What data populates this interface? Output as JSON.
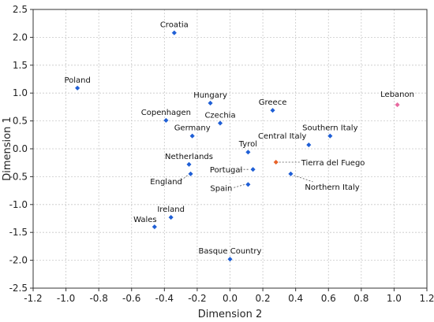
{
  "chart_data": {
    "type": "scatter",
    "xlabel": "Dimension 2",
    "ylabel": "Dimension 1",
    "xlim": [
      -1.2,
      1.2
    ],
    "ylim": [
      -2.5,
      2.5
    ],
    "xticks": [
      "-1.2",
      "-1.0",
      "-0.8",
      "-0.6",
      "-0.4",
      "-0.2",
      "0.0",
      "0.2",
      "0.4",
      "0.6",
      "0.8",
      "1.0",
      "1.2"
    ],
    "yticks": [
      "2.5",
      "2.0",
      "1.5",
      "1.0",
      "0.5",
      "0.0",
      "-0.5",
      "-1.0",
      "-1.5",
      "-2.0",
      "-2.5"
    ],
    "grid": true,
    "colors": {
      "default": "#1f5fd6",
      "tierra": "#e8632a",
      "lebanon": "#e86aa0"
    },
    "points": [
      {
        "label": "Croatia",
        "x": -0.34,
        "y": 2.08,
        "color": "default"
      },
      {
        "label": "Poland",
        "x": -0.93,
        "y": 1.09,
        "color": "default"
      },
      {
        "label": "Hungary",
        "x": -0.12,
        "y": 0.82,
        "color": "default"
      },
      {
        "label": "Copenhagen",
        "x": -0.39,
        "y": 0.51,
        "color": "default"
      },
      {
        "label": "Czechia",
        "x": -0.06,
        "y": 0.46,
        "color": "default"
      },
      {
        "label": "Greece",
        "x": 0.26,
        "y": 0.69,
        "color": "default"
      },
      {
        "label": "Lebanon",
        "x": 1.02,
        "y": 0.79,
        "color": "lebanon"
      },
      {
        "label": "Germany",
        "x": -0.23,
        "y": 0.23,
        "color": "default"
      },
      {
        "label": "Southern Italy",
        "x": 0.61,
        "y": 0.23,
        "color": "default"
      },
      {
        "label": "Central Italy",
        "x": 0.48,
        "y": 0.07,
        "color": "default"
      },
      {
        "label": "Tyrol",
        "x": 0.11,
        "y": -0.06,
        "color": "default"
      },
      {
        "label": "Netherlands",
        "x": -0.25,
        "y": -0.28,
        "color": "default"
      },
      {
        "label": "Portugal",
        "x": 0.14,
        "y": -0.37,
        "color": "default"
      },
      {
        "label": "Tierra del Fuego",
        "x": 0.28,
        "y": -0.24,
        "color": "tierra"
      },
      {
        "label": "England",
        "x": -0.24,
        "y": -0.45,
        "color": "default"
      },
      {
        "label": "Northern Italy",
        "x": 0.37,
        "y": -0.45,
        "color": "default"
      },
      {
        "label": "Spain",
        "x": 0.11,
        "y": -0.64,
        "color": "default"
      },
      {
        "label": "Ireland",
        "x": -0.36,
        "y": -1.23,
        "color": "default"
      },
      {
        "label": "Wales",
        "x": -0.46,
        "y": -1.4,
        "color": "default"
      },
      {
        "label": "Basque Country",
        "x": 0.0,
        "y": -1.98,
        "color": "default"
      }
    ]
  }
}
